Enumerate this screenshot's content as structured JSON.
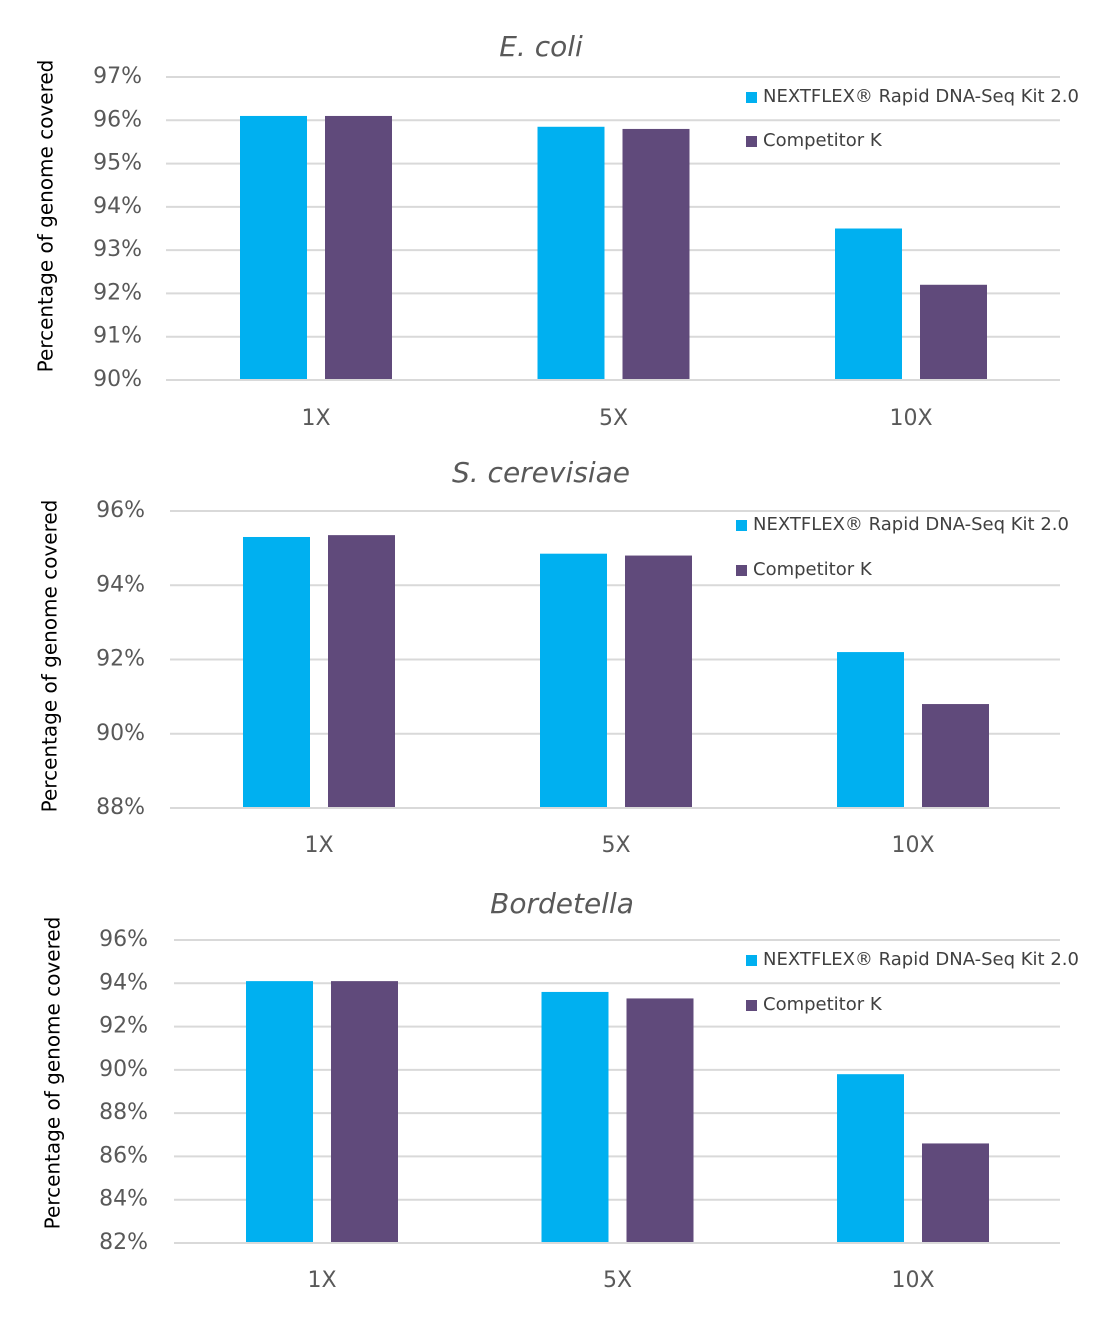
{
  "chart_data": [
    {
      "type": "bar",
      "title": "E. coli",
      "xlabel": "",
      "ylabel": "Percentage of genome covered",
      "categories": [
        "1X",
        "5X",
        "10X"
      ],
      "ylim": [
        90,
        97
      ],
      "ytick_step": 1,
      "yticks": [
        "90%",
        "91%",
        "92%",
        "93%",
        "94%",
        "95%",
        "96%",
        "97%"
      ],
      "grid": true,
      "legend_position": "top-right",
      "series": [
        {
          "name": "NEXTFLEX® Rapid DNA-Seq Kit 2.0",
          "color": "#00b0f0",
          "values": [
            96.1,
            95.85,
            93.5
          ]
        },
        {
          "name": "Competitor K",
          "color": "#604a7b",
          "values": [
            96.1,
            95.8,
            92.2
          ]
        }
      ]
    },
    {
      "type": "bar",
      "title": "S. cerevisiae",
      "xlabel": "",
      "ylabel": "Percentage of genome covered",
      "categories": [
        "1X",
        "5X",
        "10X"
      ],
      "ylim": [
        88,
        96
      ],
      "ytick_step": 2,
      "yticks": [
        "88%",
        "90%",
        "92%",
        "94%",
        "96%"
      ],
      "grid": true,
      "legend_position": "top-right",
      "series": [
        {
          "name": "NEXTFLEX® Rapid DNA-Seq Kit 2.0",
          "color": "#00b0f0",
          "values": [
            95.3,
            94.85,
            92.2
          ]
        },
        {
          "name": "Competitor K",
          "color": "#604a7b",
          "values": [
            95.35,
            94.8,
            90.8
          ]
        }
      ]
    },
    {
      "type": "bar",
      "title": "Bordetella",
      "xlabel": "",
      "ylabel": "Percentage of genome covered",
      "categories": [
        "1X",
        "5X",
        "10X"
      ],
      "ylim": [
        82,
        96
      ],
      "ytick_step": 2,
      "yticks": [
        "82%",
        "84%",
        "86%",
        "88%",
        "90%",
        "92%",
        "94%",
        "96%"
      ],
      "grid": true,
      "legend_position": "top-right",
      "series": [
        {
          "name": "NEXTFLEX® Rapid DNA-Seq Kit 2.0",
          "color": "#00b0f0",
          "values": [
            94.1,
            93.6,
            89.8
          ]
        },
        {
          "name": "Competitor K",
          "color": "#604a7b",
          "values": [
            94.1,
            93.3,
            86.6
          ]
        }
      ]
    }
  ]
}
